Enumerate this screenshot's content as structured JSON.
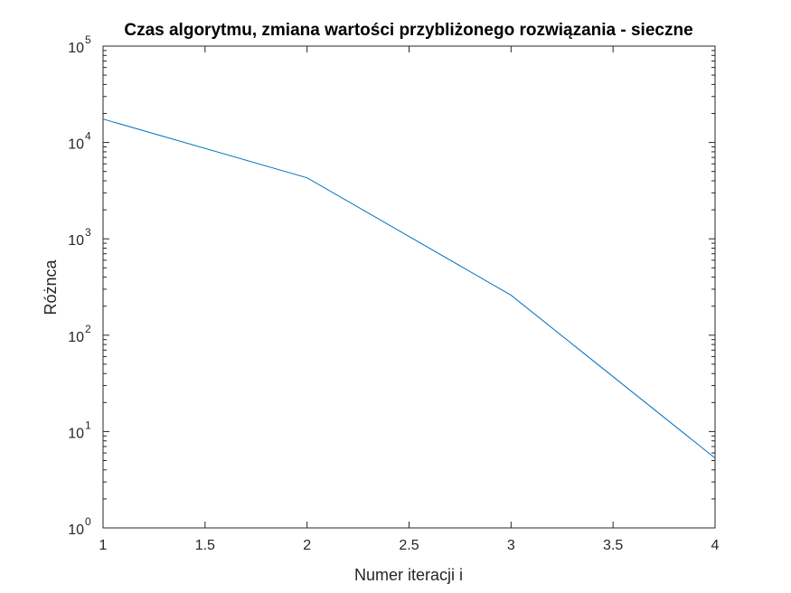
{
  "chart_data": {
    "type": "line",
    "title": "Czas algorytmu, zmiana wartości przybliżonego rozwiązania - sieczne",
    "xlabel": "Numer iteracji i",
    "ylabel": "Różnca",
    "xlim": [
      1,
      4
    ],
    "ylim": [
      1,
      100000
    ],
    "yscale": "log",
    "grid": false,
    "legend": "none",
    "x_ticks": [
      "1",
      "1.5",
      "2",
      "2.5",
      "3",
      "3.5",
      "4"
    ],
    "y_ticks": [
      {
        "base": "10",
        "exp": "0"
      },
      {
        "base": "10",
        "exp": "1"
      },
      {
        "base": "10",
        "exp": "2"
      },
      {
        "base": "10",
        "exp": "3"
      },
      {
        "base": "10",
        "exp": "4"
      },
      {
        "base": "10",
        "exp": "5"
      }
    ],
    "series": [
      {
        "color": "#0072BD",
        "x": [
          1,
          2,
          3,
          4
        ],
        "y": [
          17500,
          4300,
          260,
          5.3
        ]
      }
    ]
  }
}
